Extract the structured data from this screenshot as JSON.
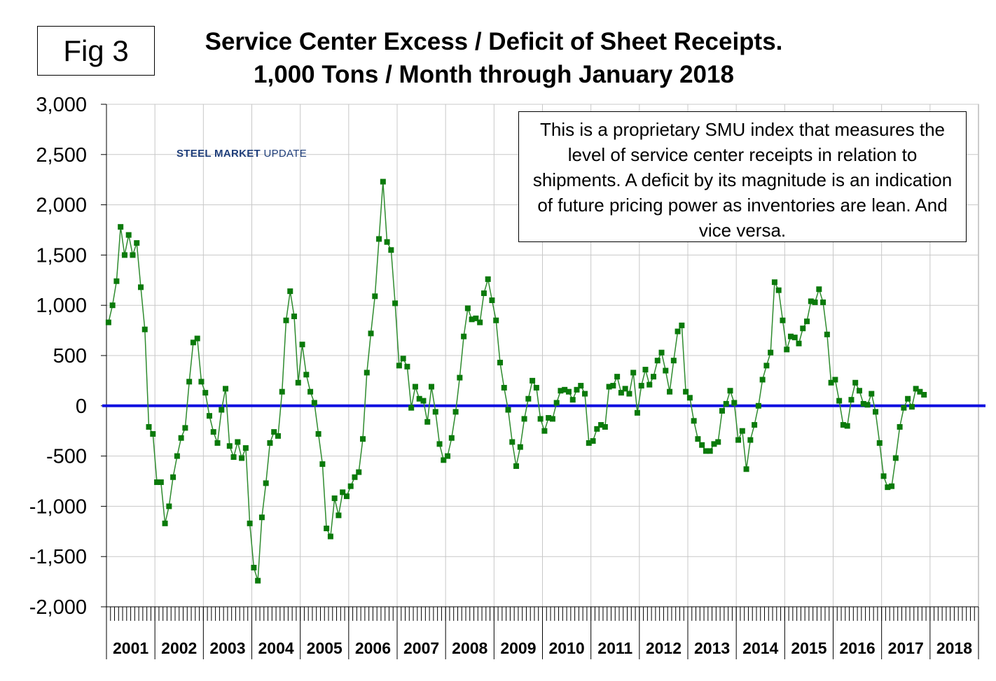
{
  "figure_label": "Fig 3",
  "note_text": "This is a proprietary SMU index that measures the level of service center receipts in relation to shipments. A deficit by its magnitude is an indication of future pricing power as inventories are lean. And vice versa.",
  "logo": {
    "part1": "STEEL MARKET",
    "part2": "UPDATE"
  },
  "colors": {
    "series_line": "#2e8b2e",
    "series_marker": "#0a7a0a",
    "zero_line": "#1010e0",
    "grid": "#c8c8c8"
  },
  "chart_data": {
    "type": "line",
    "title": "Service Center Excess / Deficit of Sheet Receipts.",
    "subtitle": "1,000 Tons / Month through January 2018",
    "ylim": [
      -2000,
      3000
    ],
    "y_ticks": [
      "3,000",
      "2,500",
      "2,000",
      "1,500",
      "1,000",
      "500",
      "0",
      "-500",
      "-1,000",
      "-1,500",
      "-2,000"
    ],
    "y_tick_values": [
      3000,
      2500,
      2000,
      1500,
      1000,
      500,
      0,
      -500,
      -1000,
      -1500,
      -2000
    ],
    "years": [
      "2001",
      "2002",
      "2003",
      "2004",
      "2005",
      "2006",
      "2007",
      "2008",
      "2009",
      "2010",
      "2011",
      "2012",
      "2013",
      "2014",
      "2015",
      "2016",
      "2017",
      "2018"
    ],
    "x_start": "2001-01",
    "x_end": "2018-01",
    "grid": true,
    "reference_line": 0,
    "series": [
      {
        "values": [
          830,
          1000,
          1240,
          1780,
          1500,
          1700,
          1500,
          1620,
          1180,
          760,
          -210,
          -280,
          -760,
          -760,
          -1170,
          -1000,
          -710,
          -500,
          -320,
          -220,
          240,
          630,
          670,
          240,
          130,
          -100,
          -260,
          -370,
          -40,
          170,
          -400,
          -510,
          -360,
          -520,
          -420,
          -1170,
          -1610,
          -1740,
          -1110,
          -770,
          -370,
          -260,
          -300,
          140,
          850,
          1140,
          890,
          230,
          610,
          310,
          140,
          30,
          -280,
          -580,
          -1220,
          -1300,
          -920,
          -1090,
          -860,
          -900,
          -800,
          -710,
          -660,
          -330,
          330,
          720,
          1090,
          1660,
          2230,
          1630,
          1550,
          1020,
          400,
          470,
          390,
          -20,
          190,
          70,
          50,
          -160,
          190,
          -60,
          -380,
          -540,
          -500,
          -320,
          -60,
          280,
          690,
          970,
          860,
          870,
          830,
          1120,
          1260,
          1050,
          850,
          430,
          180,
          -40,
          -360,
          -600,
          -410,
          -130,
          70,
          250,
          180,
          -130,
          -250,
          -120,
          -130,
          30,
          150,
          160,
          140,
          60,
          160,
          200,
          120,
          -370,
          -350,
          -230,
          -190,
          -210,
          190,
          200,
          290,
          130,
          170,
          120,
          330,
          -70,
          200,
          360,
          210,
          290,
          450,
          530,
          350,
          140,
          450,
          740,
          800,
          140,
          80,
          -150,
          -330,
          -390,
          -450,
          -450,
          -380,
          -360,
          -50,
          20,
          150,
          30,
          -340,
          -250,
          -630,
          -340,
          -190,
          0,
          260,
          400,
          530,
          1230,
          1150,
          850,
          560,
          690,
          680,
          620,
          770,
          840,
          1040,
          1030,
          1160,
          1030,
          710,
          230,
          260,
          50,
          -190,
          -200,
          60,
          230,
          150,
          20,
          10,
          120,
          -60,
          -370,
          -700,
          -810,
          -800,
          -520,
          -210,
          -20,
          70,
          -10,
          170,
          140,
          110
        ]
      }
    ]
  }
}
